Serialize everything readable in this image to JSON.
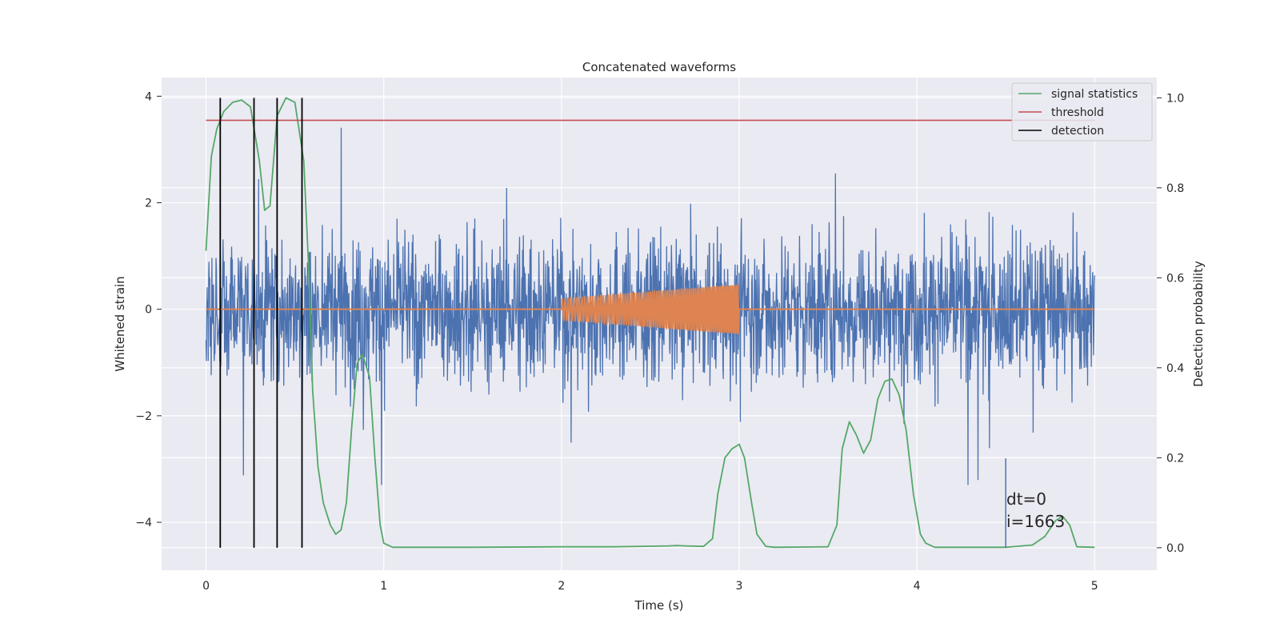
{
  "chart_data": {
    "type": "line",
    "title": "Concatenated waveforms",
    "xlabel": "Time (s)",
    "ylabel": "Whitened strain",
    "y2label": "Detection probability",
    "xlim": [
      -0.25,
      5.35
    ],
    "ylim": [
      -4.9,
      4.35
    ],
    "y2lim": [
      -0.05,
      1.045
    ],
    "xticks": [
      0,
      1,
      2,
      3,
      4,
      5
    ],
    "yticks": [
      -4,
      -2,
      0,
      2,
      4
    ],
    "y2ticks": [
      0.0,
      0.2,
      0.4,
      0.6,
      0.8,
      1.0
    ],
    "grid": true,
    "legend_position": "top-right",
    "legend": [
      "signal statistics",
      "threshold",
      "detection"
    ],
    "annotation": [
      "dt=0",
      "i=1663"
    ],
    "colors": {
      "noise": "#4c72b0",
      "injection": "#dd8452",
      "signal_statistics": "#55a868",
      "threshold": "#c44e52",
      "detection": "#000000",
      "plot_background": "#eaeaf2",
      "grid": "#ffffff"
    },
    "series": [
      {
        "name": "signal statistics",
        "axis": "right",
        "x": [
          0.0,
          0.03,
          0.06,
          0.1,
          0.15,
          0.2,
          0.25,
          0.3,
          0.33,
          0.36,
          0.4,
          0.45,
          0.5,
          0.55,
          0.58,
          0.6,
          0.63,
          0.66,
          0.7,
          0.73,
          0.76,
          0.79,
          0.82,
          0.85,
          0.88,
          0.92,
          0.95,
          0.98,
          1.0,
          1.05,
          1.5,
          2.0,
          2.3,
          2.6,
          2.65,
          2.7,
          2.8,
          2.85,
          2.88,
          2.92,
          2.96,
          3.0,
          3.03,
          3.07,
          3.1,
          3.15,
          3.2,
          3.5,
          3.55,
          3.58,
          3.62,
          3.66,
          3.7,
          3.74,
          3.78,
          3.82,
          3.86,
          3.9,
          3.94,
          3.98,
          4.02,
          4.05,
          4.1,
          4.5,
          4.65,
          4.72,
          4.78,
          4.82,
          4.86,
          4.9,
          5.0
        ],
        "values": [
          0.66,
          0.87,
          0.93,
          0.97,
          0.99,
          0.995,
          0.98,
          0.86,
          0.75,
          0.76,
          0.96,
          1.0,
          0.99,
          0.86,
          0.6,
          0.35,
          0.18,
          0.1,
          0.05,
          0.03,
          0.04,
          0.1,
          0.27,
          0.41,
          0.43,
          0.38,
          0.2,
          0.05,
          0.01,
          0.001,
          0.001,
          0.002,
          0.002,
          0.004,
          0.005,
          0.004,
          0.003,
          0.02,
          0.12,
          0.2,
          0.22,
          0.23,
          0.2,
          0.1,
          0.03,
          0.003,
          0.001,
          0.002,
          0.05,
          0.22,
          0.28,
          0.25,
          0.21,
          0.24,
          0.33,
          0.37,
          0.375,
          0.34,
          0.26,
          0.12,
          0.03,
          0.01,
          0.001,
          0.001,
          0.006,
          0.025,
          0.06,
          0.07,
          0.05,
          0.002,
          0.001
        ]
      },
      {
        "name": "threshold",
        "axis": "right",
        "x": [
          0,
          5
        ],
        "values": [
          0.95,
          0.95
        ]
      },
      {
        "name": "injection",
        "axis": "left",
        "x_range": [
          2,
          3
        ],
        "amplitude_range": [
          0.2,
          0.47
        ],
        "cycles": 60
      },
      {
        "name": "noise",
        "axis": "left",
        "x_range": [
          0,
          5
        ],
        "typical_range": [
          -3.3,
          3.9
        ]
      }
    ],
    "detections_x": [
      0.08,
      0.27,
      0.4,
      0.54,
      4.5
    ]
  }
}
